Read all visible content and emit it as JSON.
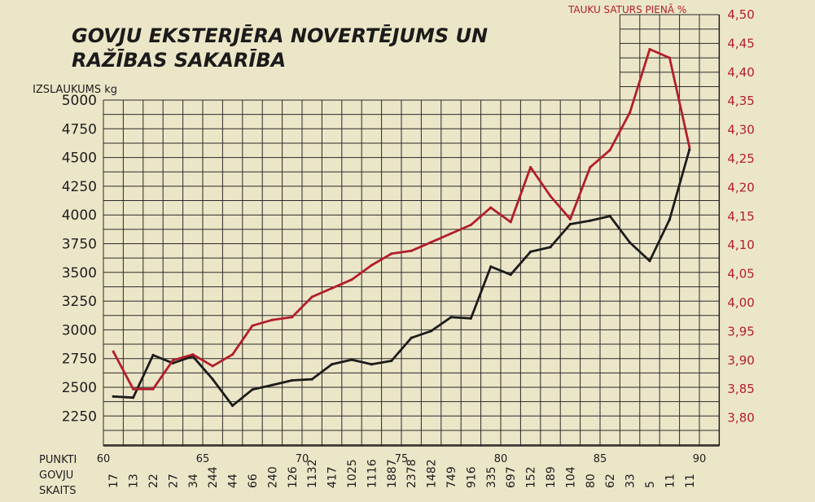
{
  "chart_data": {
    "type": "line",
    "title_line1": "GOVJU EKSTERJĒRA NOVERTĒJUMS UN",
    "title_line2": "RAŽĪBAS SAKARĪBA",
    "ylabel": "IZSLAUKUMS kg",
    "y2label": "TAUKU SATURS PIENĀ %",
    "xlabel_points": "PUNKTI",
    "xlabel_count_line1": "GOVJU",
    "xlabel_count_line2": "SKAITS",
    "ylim": [
      2000,
      5000
    ],
    "y_ticks": [
      "5000",
      "4750",
      "4500",
      "4250",
      "4000",
      "3750",
      "3500",
      "3250",
      "3000",
      "2750",
      "2500",
      "2250"
    ],
    "y2lim": [
      3.75,
      4.5
    ],
    "y2_ticks": [
      "4,50",
      "4,45",
      "4,40",
      "4,35",
      "4,30",
      "4,25",
      "4,20",
      "4,15",
      "4,10",
      "4,05",
      "4,00",
      "3,95",
      "3,90",
      "3,85",
      "3,80"
    ],
    "x_points": [
      60,
      61,
      62,
      63,
      64,
      65,
      66,
      67,
      68,
      69,
      70,
      71,
      72,
      73,
      74,
      75,
      76,
      77,
      78,
      79,
      80,
      81,
      82,
      83,
      84,
      85,
      86,
      87,
      88,
      89
    ],
    "point_ticks": [
      "60",
      "65",
      "70",
      "75",
      "80",
      "85",
      "90"
    ],
    "cow_counts": [
      "17",
      "13",
      "22",
      "27",
      "34",
      "244",
      "44",
      "66",
      "240",
      "126",
      "1132",
      "417",
      "1025",
      "1116",
      "1887",
      "2378",
      "1482",
      "749",
      "916",
      "335",
      "697",
      "152",
      "189",
      "104",
      "80",
      "62",
      "33",
      "5",
      "11",
      "11"
    ],
    "series": [
      {
        "axis": "left",
        "color": "#1c1c1c",
        "values": [
          2420,
          2410,
          2780,
          2710,
          2770,
          2570,
          2340,
          2480,
          2520,
          2560,
          2570,
          2700,
          2740,
          2700,
          2730,
          2930,
          2990,
          3110,
          3100,
          3550,
          3480,
          3680,
          3720,
          3920,
          3950,
          3990,
          3760,
          3600,
          3960,
          4570
        ]
      },
      {
        "axis": "right",
        "color": "#b21e2a",
        "values": [
          3.915,
          3.85,
          3.85,
          3.9,
          3.91,
          3.89,
          3.91,
          3.96,
          3.97,
          3.975,
          4.01,
          4.025,
          4.04,
          4.065,
          4.085,
          4.09,
          4.105,
          4.12,
          4.135,
          4.165,
          4.14,
          4.235,
          4.185,
          4.145,
          4.235,
          4.265,
          4.33,
          4.44,
          4.425,
          4.27
        ]
      }
    ],
    "grid": true
  }
}
